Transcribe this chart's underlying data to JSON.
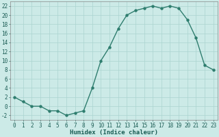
{
  "x": [
    0,
    1,
    2,
    3,
    4,
    5,
    6,
    7,
    8,
    9,
    10,
    11,
    12,
    13,
    14,
    15,
    16,
    17,
    18,
    19,
    20,
    21,
    22,
    23
  ],
  "y": [
    2,
    1,
    0,
    0,
    -1,
    -1,
    -2,
    -1.5,
    -1,
    4,
    10,
    13,
    17,
    20,
    21,
    21.5,
    22,
    21.5,
    22,
    21.5,
    19,
    15,
    9,
    8
  ],
  "line_color": "#2e7d6e",
  "marker": "o",
  "marker_size": 2.2,
  "linewidth": 1.0,
  "bg_color": "#cceae7",
  "grid_color": "#aad4d0",
  "xlabel": "Humidex (Indice chaleur)",
  "xlabel_fontsize": 6.5,
  "xlim": [
    -0.5,
    23.5
  ],
  "ylim": [
    -3,
    23
  ],
  "yticks": [
    -2,
    0,
    2,
    4,
    6,
    8,
    10,
    12,
    14,
    16,
    18,
    20,
    22
  ],
  "xticks": [
    0,
    1,
    2,
    3,
    4,
    5,
    6,
    7,
    8,
    9,
    10,
    11,
    12,
    13,
    14,
    15,
    16,
    17,
    18,
    19,
    20,
    21,
    22,
    23
  ],
  "tick_fontsize": 5.5
}
